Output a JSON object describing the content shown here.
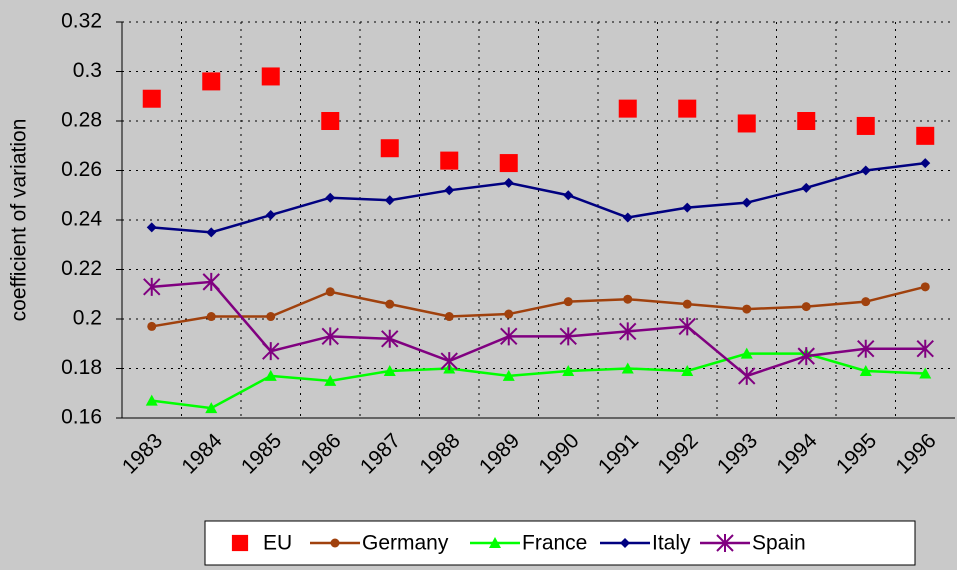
{
  "chart_data": {
    "type": "line",
    "y_label": "coefficient of variation",
    "categories": [
      "1983",
      "1984",
      "1985",
      "1986",
      "1987",
      "1988",
      "1989",
      "1990",
      "1991",
      "1992",
      "1993",
      "1994",
      "1995",
      "1996"
    ],
    "ylim": [
      0.16,
      0.32
    ],
    "yticks": [
      0.16,
      0.18,
      0.2,
      0.22,
      0.24,
      0.26,
      0.28,
      0.3,
      0.32
    ],
    "grid": true,
    "legend": "bottom",
    "series": [
      {
        "name": "EU",
        "color": "#ff0000",
        "marker": "square",
        "line": false,
        "values": [
          0.289,
          0.296,
          0.298,
          0.28,
          0.269,
          0.264,
          0.263,
          null,
          0.285,
          0.285,
          0.279,
          0.28,
          0.278,
          0.274
        ]
      },
      {
        "name": "Germany",
        "color": "#a0410d",
        "marker": "circle",
        "line": true,
        "values": [
          0.197,
          0.201,
          0.201,
          0.211,
          0.206,
          0.201,
          0.202,
          0.207,
          0.208,
          0.206,
          0.204,
          0.205,
          0.207,
          0.213
        ]
      },
      {
        "name": "France",
        "color": "#00ff00",
        "marker": "triangle",
        "line": true,
        "values": [
          0.167,
          0.164,
          0.177,
          0.175,
          0.179,
          0.18,
          0.177,
          0.179,
          0.18,
          0.179,
          0.186,
          0.186,
          0.179,
          0.178
        ]
      },
      {
        "name": "Italy",
        "color": "#000080",
        "marker": "diamond",
        "line": true,
        "values": [
          0.237,
          0.235,
          0.242,
          0.249,
          0.248,
          0.252,
          0.255,
          0.25,
          0.241,
          0.245,
          0.247,
          0.253,
          0.26,
          0.263
        ]
      },
      {
        "name": "Spain",
        "color": "#800080",
        "marker": "star",
        "line": true,
        "values": [
          0.213,
          0.215,
          0.187,
          0.193,
          0.192,
          0.183,
          0.193,
          0.193,
          0.195,
          0.197,
          0.177,
          0.185,
          0.188,
          0.188
        ]
      }
    ]
  }
}
